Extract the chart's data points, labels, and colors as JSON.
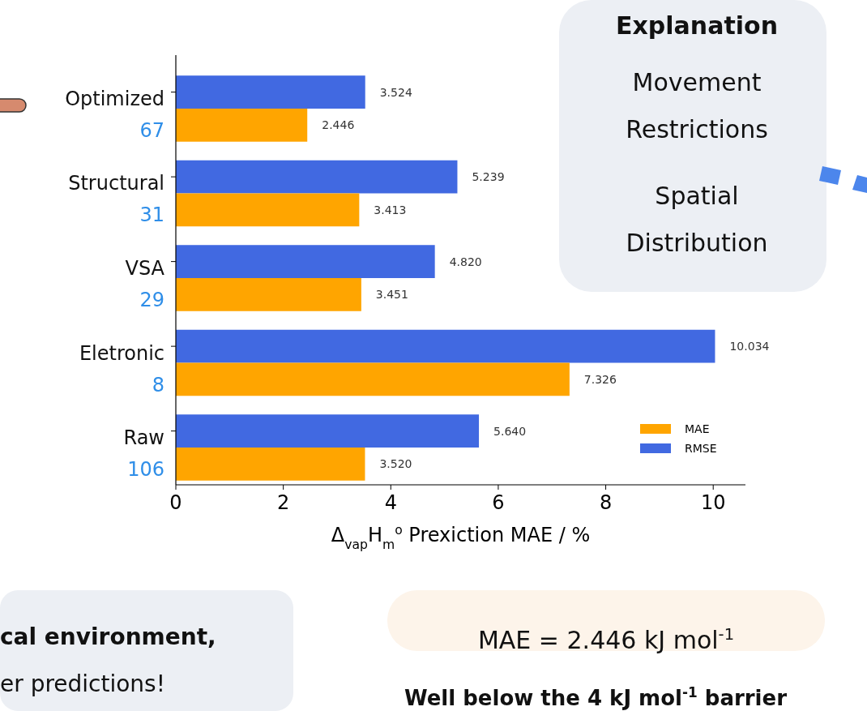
{
  "chart_data": {
    "type": "bar",
    "orientation": "horizontal",
    "categories": [
      "Optimized\n67",
      "Structural\n31",
      "VSA\n29",
      "Eletronic\n8",
      "Raw\n106"
    ],
    "series": [
      {
        "name": "RMSE",
        "color": "#4169e1",
        "values": [
          3.524,
          5.239,
          4.82,
          10.034,
          5.64
        ],
        "value_labels": [
          "3.524",
          "5.239",
          "4.820",
          "10.034",
          "5.640"
        ]
      },
      {
        "name": "MAE",
        "color": "#ffa500",
        "values": [
          2.446,
          3.413,
          3.451,
          7.326,
          3.52
        ],
        "value_labels": [
          "2.446",
          "3.413",
          "3.451",
          "7.326",
          "3.520"
        ]
      }
    ],
    "xlabel": "Δ$_{vap}$H$_{m}$$^{o}$ Prexiction MAE / %",
    "xlim": [
      0,
      10.6
    ],
    "xticks": [
      0,
      2,
      4,
      6,
      8,
      10
    ],
    "legend": "bottom right",
    "grid": false,
    "annotations": [
      "Explanation",
      "Movement Restrictions",
      "Spatial Distribution",
      "cal environment,",
      "er predictions!",
      "MAE = 2.446 kJ mol$^{-1}$",
      "Well below the 4 kJ mol$^{-1}$ barrier"
    ]
  }
}
